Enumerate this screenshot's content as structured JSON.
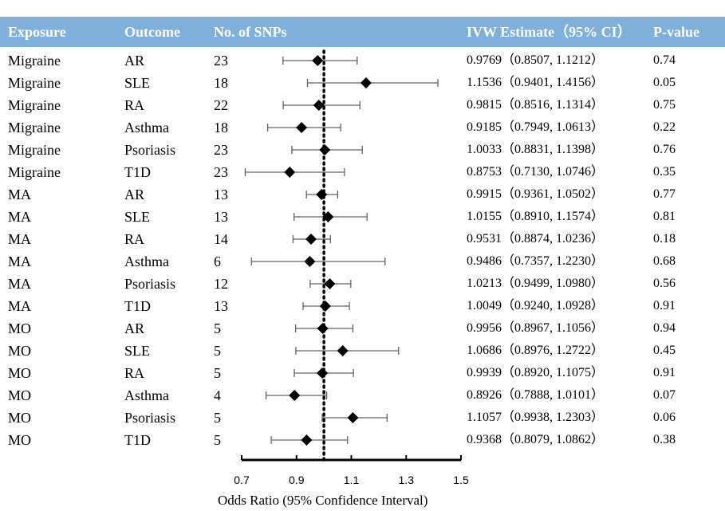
{
  "colors": {
    "header_bg": "#7fb0d9",
    "header_text": "#ffffff",
    "marker": "#000000",
    "ci_line": "#606060"
  },
  "header": {
    "exposure": "Exposure",
    "outcome": "Outcome",
    "nsnps": "No. of SNPs",
    "estimate": "IVW Estimate（95% CI）",
    "pvalue": "P-value"
  },
  "rows": [
    {
      "exposure": "Migraine",
      "outcome": "AR",
      "nsnps": "23",
      "estimate": "0.9769（0.8507, 1.1212）",
      "pvalue": "0.74"
    },
    {
      "exposure": "Migraine",
      "outcome": "SLE",
      "nsnps": "18",
      "estimate": "1.1536（0.9401, 1.4156）",
      "pvalue": "0.05"
    },
    {
      "exposure": "Migraine",
      "outcome": "RA",
      "nsnps": "22",
      "estimate": "0.9815（0.8516, 1.1314）",
      "pvalue": "0.75"
    },
    {
      "exposure": "Migraine",
      "outcome": "Asthma",
      "nsnps": "18",
      "estimate": "0.9185（0.7949, 1.0613）",
      "pvalue": "0.22"
    },
    {
      "exposure": "Migraine",
      "outcome": "Psoriasis",
      "nsnps": "23",
      "estimate": "1.0033（0.8831, 1.1398）",
      "pvalue": "0.76"
    },
    {
      "exposure": "Migraine",
      "outcome": "T1D",
      "nsnps": "23",
      "estimate": "0.8753（0.7130, 1.0746）",
      "pvalue": "0.35"
    },
    {
      "exposure": "MA",
      "outcome": "AR",
      "nsnps": "13",
      "estimate": "0.9915（0.9361, 1.0502）",
      "pvalue": "0.77"
    },
    {
      "exposure": "MA",
      "outcome": "SLE",
      "nsnps": "13",
      "estimate": "1.0155（0.8910, 1.1574）",
      "pvalue": "0.81"
    },
    {
      "exposure": "MA",
      "outcome": "RA",
      "nsnps": "14",
      "estimate": "0.9531（0.8874, 1.0236）",
      "pvalue": "0.18"
    },
    {
      "exposure": "MA",
      "outcome": "Asthma",
      "nsnps": "6",
      "estimate": "0.9486（0.7357, 1.2230）",
      "pvalue": "0.68"
    },
    {
      "exposure": "MA",
      "outcome": "Psoriasis",
      "nsnps": "12",
      "estimate": "1.0213（0.9499, 1.0980）",
      "pvalue": "0.56"
    },
    {
      "exposure": "MA",
      "outcome": "T1D",
      "nsnps": "13",
      "estimate": "1.0049（0.9240, 1.0928）",
      "pvalue": "0.91"
    },
    {
      "exposure": "MO",
      "outcome": "AR",
      "nsnps": "5",
      "estimate": "0.9956（0.8967, 1.1056）",
      "pvalue": "0.94"
    },
    {
      "exposure": "MO",
      "outcome": "SLE",
      "nsnps": "5",
      "estimate": "1.0686（0.8976, 1.2722）",
      "pvalue": "0.45"
    },
    {
      "exposure": "MO",
      "outcome": "RA",
      "nsnps": "5",
      "estimate": "0.9939（0.8920, 1.1075）",
      "pvalue": "0.91"
    },
    {
      "exposure": "MO",
      "outcome": "Asthma",
      "nsnps": "4",
      "estimate": "0.8926（0.7888, 1.0101）",
      "pvalue": "0.07"
    },
    {
      "exposure": "MO",
      "outcome": "Psoriasis",
      "nsnps": "5",
      "estimate": "1.1057（0.9938, 1.2303）",
      "pvalue": "0.06"
    },
    {
      "exposure": "MO",
      "outcome": "T1D",
      "nsnps": "5",
      "estimate": "0.9368（0.8079, 1.0862）",
      "pvalue": "0.38"
    }
  ],
  "chart_data": {
    "type": "forest",
    "xlabel": "Odds Ratio (95% Confidence Interval)",
    "xlim": [
      0.7,
      1.5
    ],
    "xticks": [
      0.7,
      0.9,
      1.1,
      1.3,
      1.5
    ],
    "tick_labels": [
      "0.7",
      "0.9",
      "1.1",
      "1.3",
      "1.5"
    ],
    "reference_line": 1.0,
    "reference_style": "dotted",
    "points": [
      {
        "or": 0.9769,
        "lo": 0.8507,
        "hi": 1.1212
      },
      {
        "or": 1.1536,
        "lo": 0.9401,
        "hi": 1.4156
      },
      {
        "or": 0.9815,
        "lo": 0.8516,
        "hi": 1.1314
      },
      {
        "or": 0.9185,
        "lo": 0.7949,
        "hi": 1.0613
      },
      {
        "or": 1.0033,
        "lo": 0.8831,
        "hi": 1.1398
      },
      {
        "or": 0.8753,
        "lo": 0.713,
        "hi": 1.0746
      },
      {
        "or": 0.9915,
        "lo": 0.9361,
        "hi": 1.0502
      },
      {
        "or": 1.0155,
        "lo": 0.891,
        "hi": 1.1574
      },
      {
        "or": 0.9531,
        "lo": 0.8874,
        "hi": 1.0236
      },
      {
        "or": 0.9486,
        "lo": 0.7357,
        "hi": 1.223
      },
      {
        "or": 1.0213,
        "lo": 0.9499,
        "hi": 1.098
      },
      {
        "or": 1.0049,
        "lo": 0.924,
        "hi": 1.0928
      },
      {
        "or": 0.9956,
        "lo": 0.8967,
        "hi": 1.1056
      },
      {
        "or": 1.0686,
        "lo": 0.8976,
        "hi": 1.2722
      },
      {
        "or": 0.9939,
        "lo": 0.892,
        "hi": 1.1075
      },
      {
        "or": 0.8926,
        "lo": 0.7888,
        "hi": 1.0101
      },
      {
        "or": 1.1057,
        "lo": 0.9938,
        "hi": 1.2303
      },
      {
        "or": 0.9368,
        "lo": 0.8079,
        "hi": 1.0862
      }
    ]
  }
}
